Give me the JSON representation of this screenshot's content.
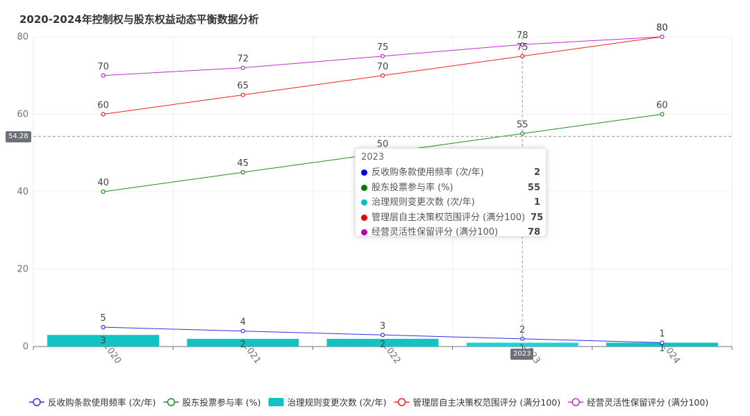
{
  "chart_data": {
    "title": "2020-2024年控制权与股东权益动态平衡数据分析",
    "type": "bar-line",
    "categories": [
      "2020",
      "2021",
      "2022",
      "2023",
      "2024"
    ],
    "ylim": [
      0,
      80
    ],
    "yticks": [
      0,
      20,
      40,
      60,
      80
    ],
    "grid": true,
    "legend_position": "bottom",
    "series": [
      {
        "name": "反收购条款使用频率 (次/年)",
        "type": "line",
        "color": "#2f2ff0",
        "values": [
          5,
          4,
          3,
          2,
          1
        ]
      },
      {
        "name": "股东投票参与率 (%)",
        "type": "line",
        "color": "#228b22",
        "values": [
          40,
          45,
          50,
          55,
          60
        ]
      },
      {
        "name": "治理规则变更次数 (次/年)",
        "type": "bar",
        "color": "#13c2c2",
        "values": [
          3,
          2,
          2,
          1,
          1
        ]
      },
      {
        "name": "管理层自主决策权范围评分 (满分100)",
        "type": "line",
        "color": "#ee2222",
        "values": [
          60,
          65,
          70,
          75,
          80
        ]
      },
      {
        "name": "经营灵活性保留评分 (满分100)",
        "type": "line",
        "color": "#c02ccf",
        "values": [
          70,
          72,
          75,
          78,
          80
        ]
      }
    ],
    "pointer": {
      "y_value_label": "54.28",
      "y_value": 54.28,
      "x_label": "2023"
    },
    "tooltip": {
      "title": "2023",
      "rows": [
        {
          "name": "反收购条款使用频率 (次/年)",
          "value": "2",
          "color": "#0000ee"
        },
        {
          "name": "股东投票参与率 (%)",
          "value": "55",
          "color": "#007a00"
        },
        {
          "name": "治理规则变更次数 (次/年)",
          "value": "1",
          "color": "#00c0c0"
        },
        {
          "name": "管理层自主决策权范围评分 (满分100)",
          "value": "75",
          "color": "#ee0000"
        },
        {
          "name": "经营灵活性保留评分 (满分100)",
          "value": "78",
          "color": "#bb00bb"
        }
      ]
    }
  }
}
